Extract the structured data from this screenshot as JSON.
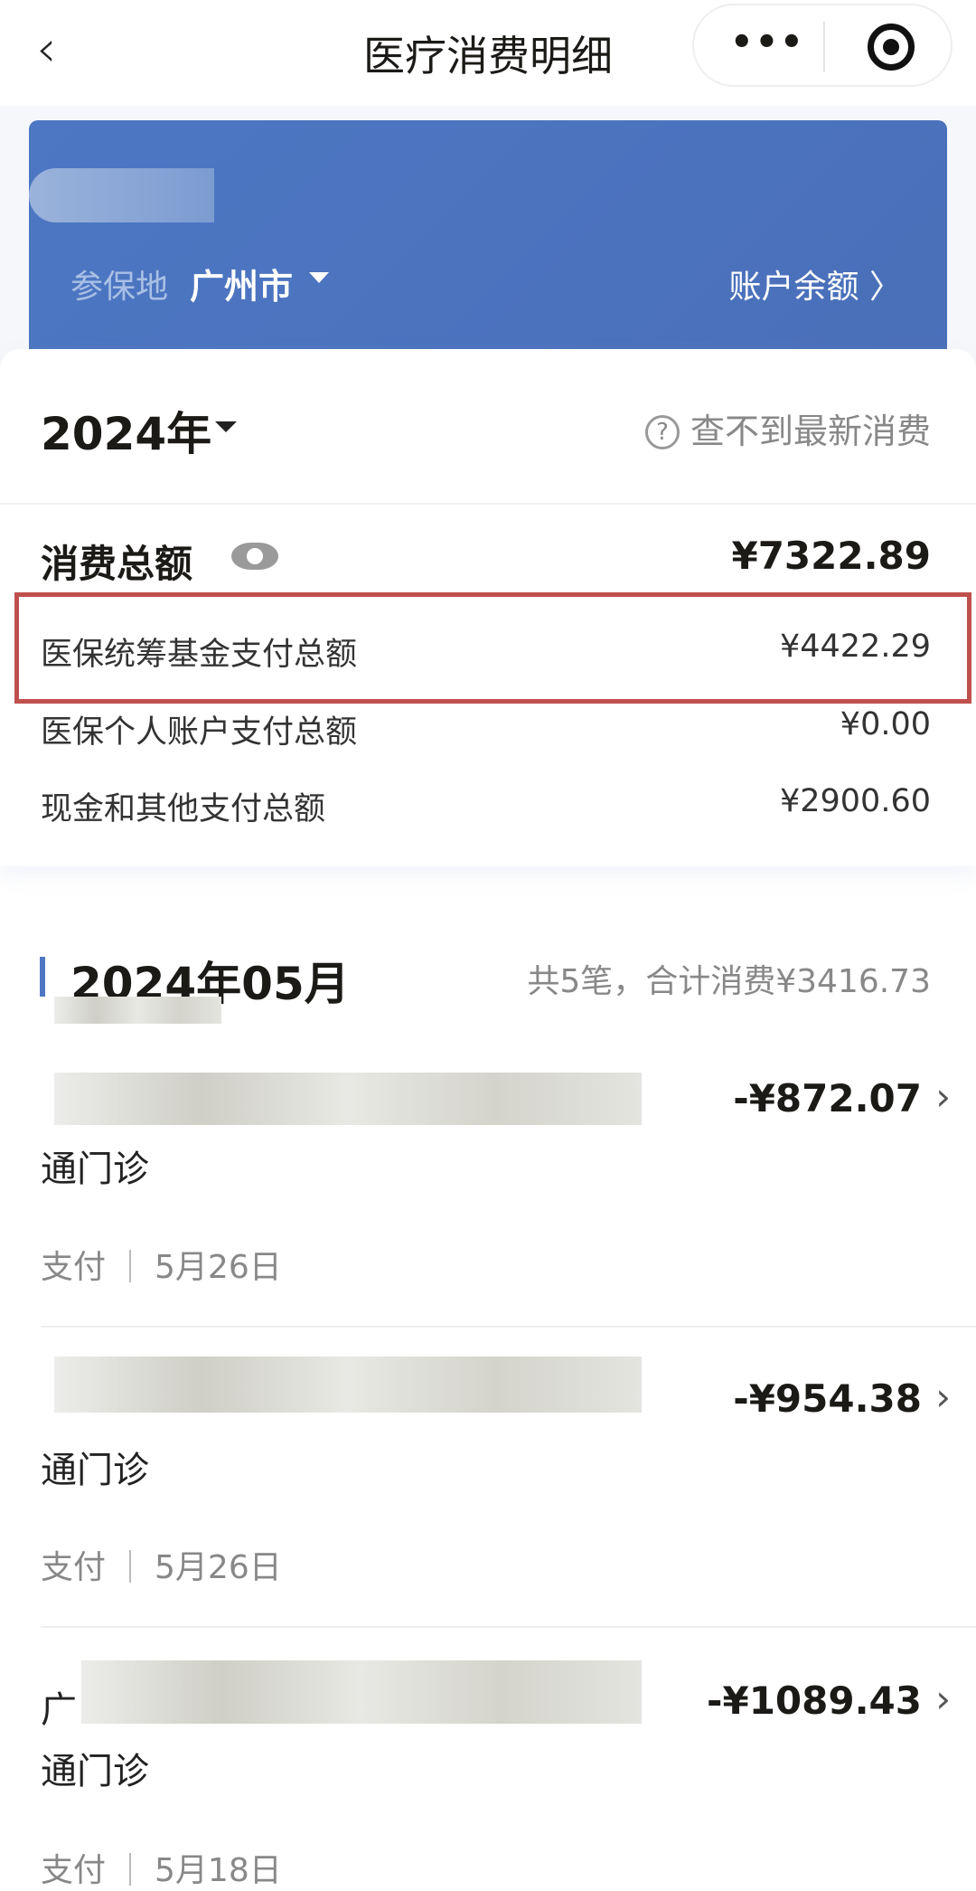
{
  "nav": {
    "title": "医疗消费明细",
    "back_icon": "chevron-left-icon",
    "more_label": "•••"
  },
  "banner": {
    "location_label": "参保地",
    "location_value": "广州市",
    "balance_link": "账户余额 〉"
  },
  "summary": {
    "year": "2024年",
    "help_text": "查不到最新消费",
    "total_label": "消费总额",
    "total_value": "¥7322.89",
    "rows": [
      {
        "label": "医保统筹基金支付总额",
        "value": "¥4422.29"
      },
      {
        "label": "医保个人账户支付总额",
        "value": "¥0.00"
      },
      {
        "label": "现金和其他支付总额",
        "value": "¥2900.60"
      }
    ]
  },
  "month": {
    "title": "2024年05月",
    "summary": "共5笔，合计消费¥3416.73"
  },
  "items": [
    {
      "amount": "-¥872.07",
      "type": "通门诊",
      "status": "支付",
      "date": "5月26日"
    },
    {
      "amount": "-¥954.38",
      "type": "通门诊",
      "status": "支付",
      "date": "5月26日"
    },
    {
      "amount": "-¥1089.43",
      "type": "通门诊",
      "status": "支付",
      "date": "5月18日",
      "prefix": "广"
    }
  ],
  "colors": {
    "accent": "#4d77c3",
    "highlight_box": "#c0504d"
  }
}
